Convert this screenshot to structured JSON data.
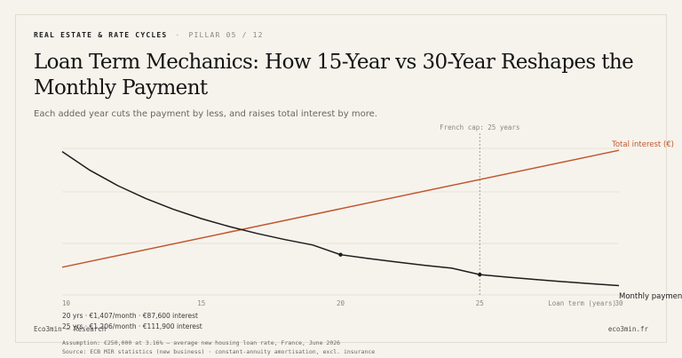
{
  "header": {
    "kicker": "REAL ESTATE & RATE CYCLES",
    "separator": "·",
    "pillar": "PILLAR 05 / 12",
    "title": "Loan Term Mechanics: How 15-Year vs 30-Year Reshapes the Monthly Payment",
    "subtitle": "Each added year cuts the payment by less, and raises total interest by more."
  },
  "chart_data": {
    "type": "line",
    "xlabel": "Loan term (years)",
    "xlim": [
      10,
      30
    ],
    "x_ticks": [
      10,
      15,
      20,
      25,
      30
    ],
    "grid": true,
    "series": [
      {
        "name": "Monthly payment (€)",
        "color": "#1c1c1c",
        "x": [
          10,
          11,
          12,
          13,
          14,
          15,
          16,
          17,
          18,
          19,
          20,
          21,
          22,
          23,
          24,
          25,
          26,
          27,
          28,
          29,
          30
        ],
        "y": [
          2450,
          2260,
          2105,
          1975,
          1865,
          1772,
          1692,
          1622,
          1560,
          1505,
          1407,
          1368,
          1333,
          1300,
          1270,
          1206,
          1180,
          1156,
          1134,
          1113,
          1094
        ]
      },
      {
        "name": "Total interest (€)",
        "color": "#c0562f",
        "x": [
          10,
          30
        ],
        "y": [
          42000,
          135000
        ]
      }
    ],
    "highlights": [
      {
        "x": 20,
        "series": "Monthly payment (€)"
      },
      {
        "x": 25,
        "series": "Monthly payment (€)"
      }
    ],
    "reference_line": {
      "x": 25,
      "label": "French cap: 25 years"
    }
  },
  "notes": {
    "line1": "20 yrs · €1,407/month · €87,600 interest",
    "line2": "25 yrs · €1,206/month · €111,900 interest"
  },
  "footer": {
    "left": "Eco3min — Research",
    "right": "eco3min.fr",
    "assumption": "Assumption: €250,000 at 3.16% — average new housing loan rate, France, June 2026",
    "source": "Source: ECB MIR statistics (new business) · constant-annuity amortisation, excl. insurance"
  },
  "colors": {
    "background": "#f6f3ec",
    "payment": "#1c1c1c",
    "interest": "#c0562f",
    "grid": "#e3ded3"
  }
}
